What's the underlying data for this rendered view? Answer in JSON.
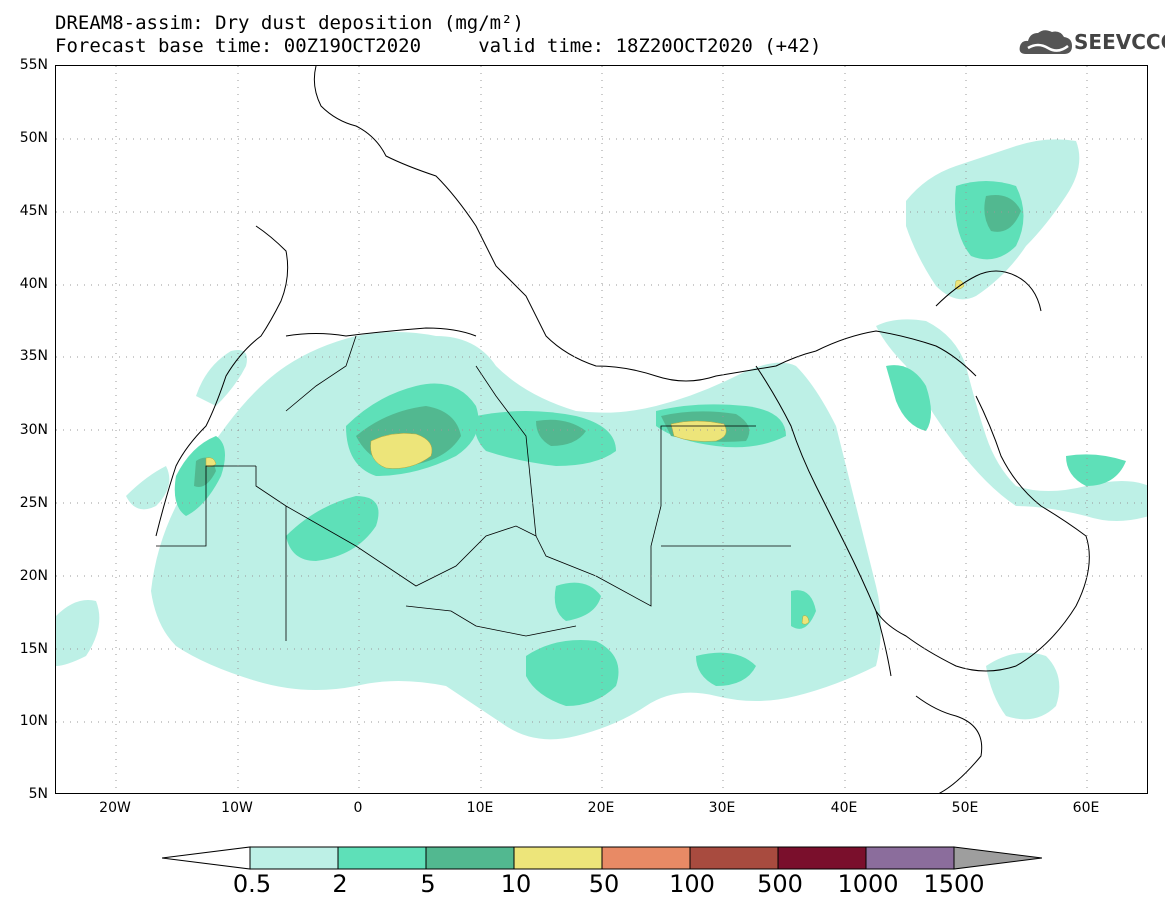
{
  "title": {
    "line1": "DREAM8-assim: Dry dust deposition (mg/m²)",
    "line2": "Forecast base time: 00Z19OCT2020     valid time: 18Z20OCT2020 (+42)"
  },
  "logo": {
    "text": "SEEVCCC",
    "icon": "cloud-icon"
  },
  "map": {
    "lat_labels": [
      "55N",
      "50N",
      "45N",
      "40N",
      "35N",
      "30N",
      "25N",
      "20N",
      "15N",
      "10N",
      "5N"
    ],
    "lon_labels": [
      "20W",
      "10W",
      "0",
      "10E",
      "20E",
      "30E",
      "40E",
      "50E",
      "60E"
    ],
    "lat_range": [
      5,
      55
    ],
    "lon_range": [
      -25,
      65
    ],
    "grid": "dotted"
  },
  "legend": {
    "labels": [
      "0.5",
      "2",
      "5",
      "10",
      "50",
      "100",
      "500",
      "1000",
      "1500"
    ],
    "colors": [
      "#bdf0e6",
      "#5ee0b8",
      "#52b890",
      "#ede57a",
      "#e88a65",
      "#a84b3f",
      "#7a0f2c",
      "#8b6d9c",
      "#9e9e9e"
    ]
  }
}
